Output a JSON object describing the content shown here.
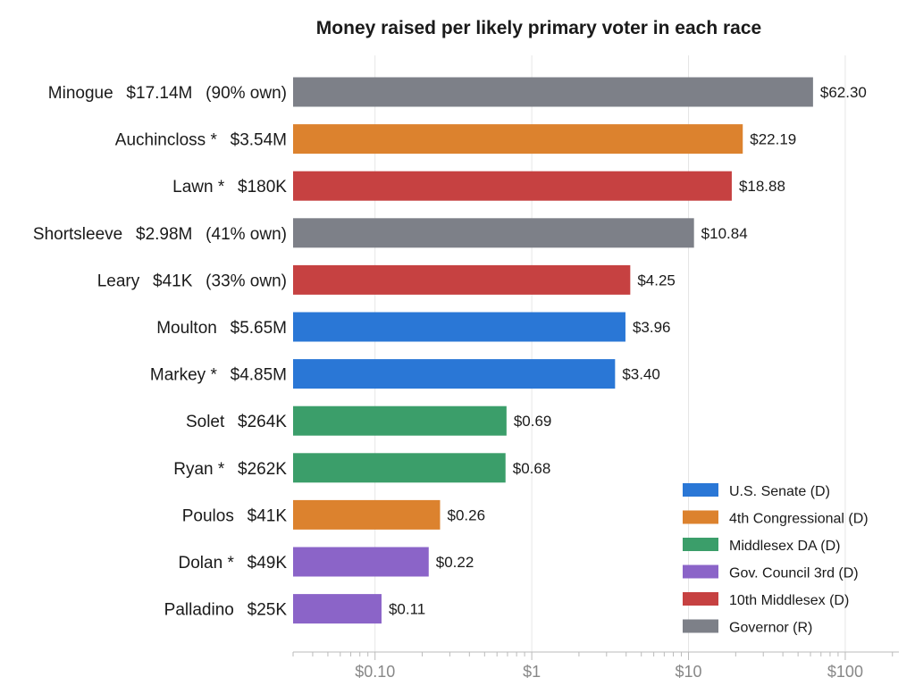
{
  "chart_data": {
    "type": "bar",
    "orientation": "horizontal",
    "title": "Money raised per likely primary voter in each race",
    "xscale": "log",
    "xlim": [
      0.03,
      220
    ],
    "grid": true,
    "legend_position": "bottom-right",
    "xticks": [
      {
        "value": 0.1,
        "label": "$0.10"
      },
      {
        "value": 1,
        "label": "$1"
      },
      {
        "value": 10,
        "label": "$10"
      },
      {
        "value": 100,
        "label": "$100"
      }
    ],
    "series": [
      {
        "name": "U.S. Senate (D)",
        "color": "#2a77d6"
      },
      {
        "name": "4th Congressional (D)",
        "color": "#dc822e"
      },
      {
        "name": "Middlesex DA (D)",
        "color": "#3b9e6a"
      },
      {
        "name": "Gov. Council 3rd (D)",
        "color": "#8b64c8"
      },
      {
        "name": "10th Middlesex (D)",
        "color": "#c64141"
      },
      {
        "name": "Governor (R)",
        "color": "#7d8088"
      }
    ],
    "bars": [
      {
        "name": "Minogue",
        "amount": "$17.14M",
        "own": "(90% own)",
        "value": 62.3,
        "value_label": "$62.30",
        "series": "Governor (R)"
      },
      {
        "name": "Auchincloss *",
        "amount": "$3.54M",
        "own": "",
        "value": 22.19,
        "value_label": "$22.19",
        "series": "4th Congressional (D)"
      },
      {
        "name": "Lawn *",
        "amount": "$180K",
        "own": "",
        "value": 18.88,
        "value_label": "$18.88",
        "series": "10th Middlesex (D)"
      },
      {
        "name": "Shortsleeve",
        "amount": "$2.98M",
        "own": "(41% own)",
        "value": 10.84,
        "value_label": "$10.84",
        "series": "Governor (R)"
      },
      {
        "name": "Leary",
        "amount": "$41K",
        "own": "(33% own)",
        "value": 4.25,
        "value_label": "$4.25",
        "series": "10th Middlesex (D)"
      },
      {
        "name": "Moulton",
        "amount": "$5.65M",
        "own": "",
        "value": 3.96,
        "value_label": "$3.96",
        "series": "U.S. Senate (D)"
      },
      {
        "name": "Markey *",
        "amount": "$4.85M",
        "own": "",
        "value": 3.4,
        "value_label": "$3.40",
        "series": "U.S. Senate (D)"
      },
      {
        "name": "Solet",
        "amount": "$264K",
        "own": "",
        "value": 0.69,
        "value_label": "$0.69",
        "series": "Middlesex DA (D)"
      },
      {
        "name": "Ryan *",
        "amount": "$262K",
        "own": "",
        "value": 0.68,
        "value_label": "$0.68",
        "series": "Middlesex DA (D)"
      },
      {
        "name": "Poulos",
        "amount": "$41K",
        "own": "",
        "value": 0.26,
        "value_label": "$0.26",
        "series": "4th Congressional (D)"
      },
      {
        "name": "Dolan *",
        "amount": "$49K",
        "own": "",
        "value": 0.22,
        "value_label": "$0.22",
        "series": "Gov. Council 3rd (D)"
      },
      {
        "name": "Palladino",
        "amount": "$25K",
        "own": "",
        "value": 0.11,
        "value_label": "$0.11",
        "series": "Gov. Council 3rd (D)"
      }
    ]
  }
}
